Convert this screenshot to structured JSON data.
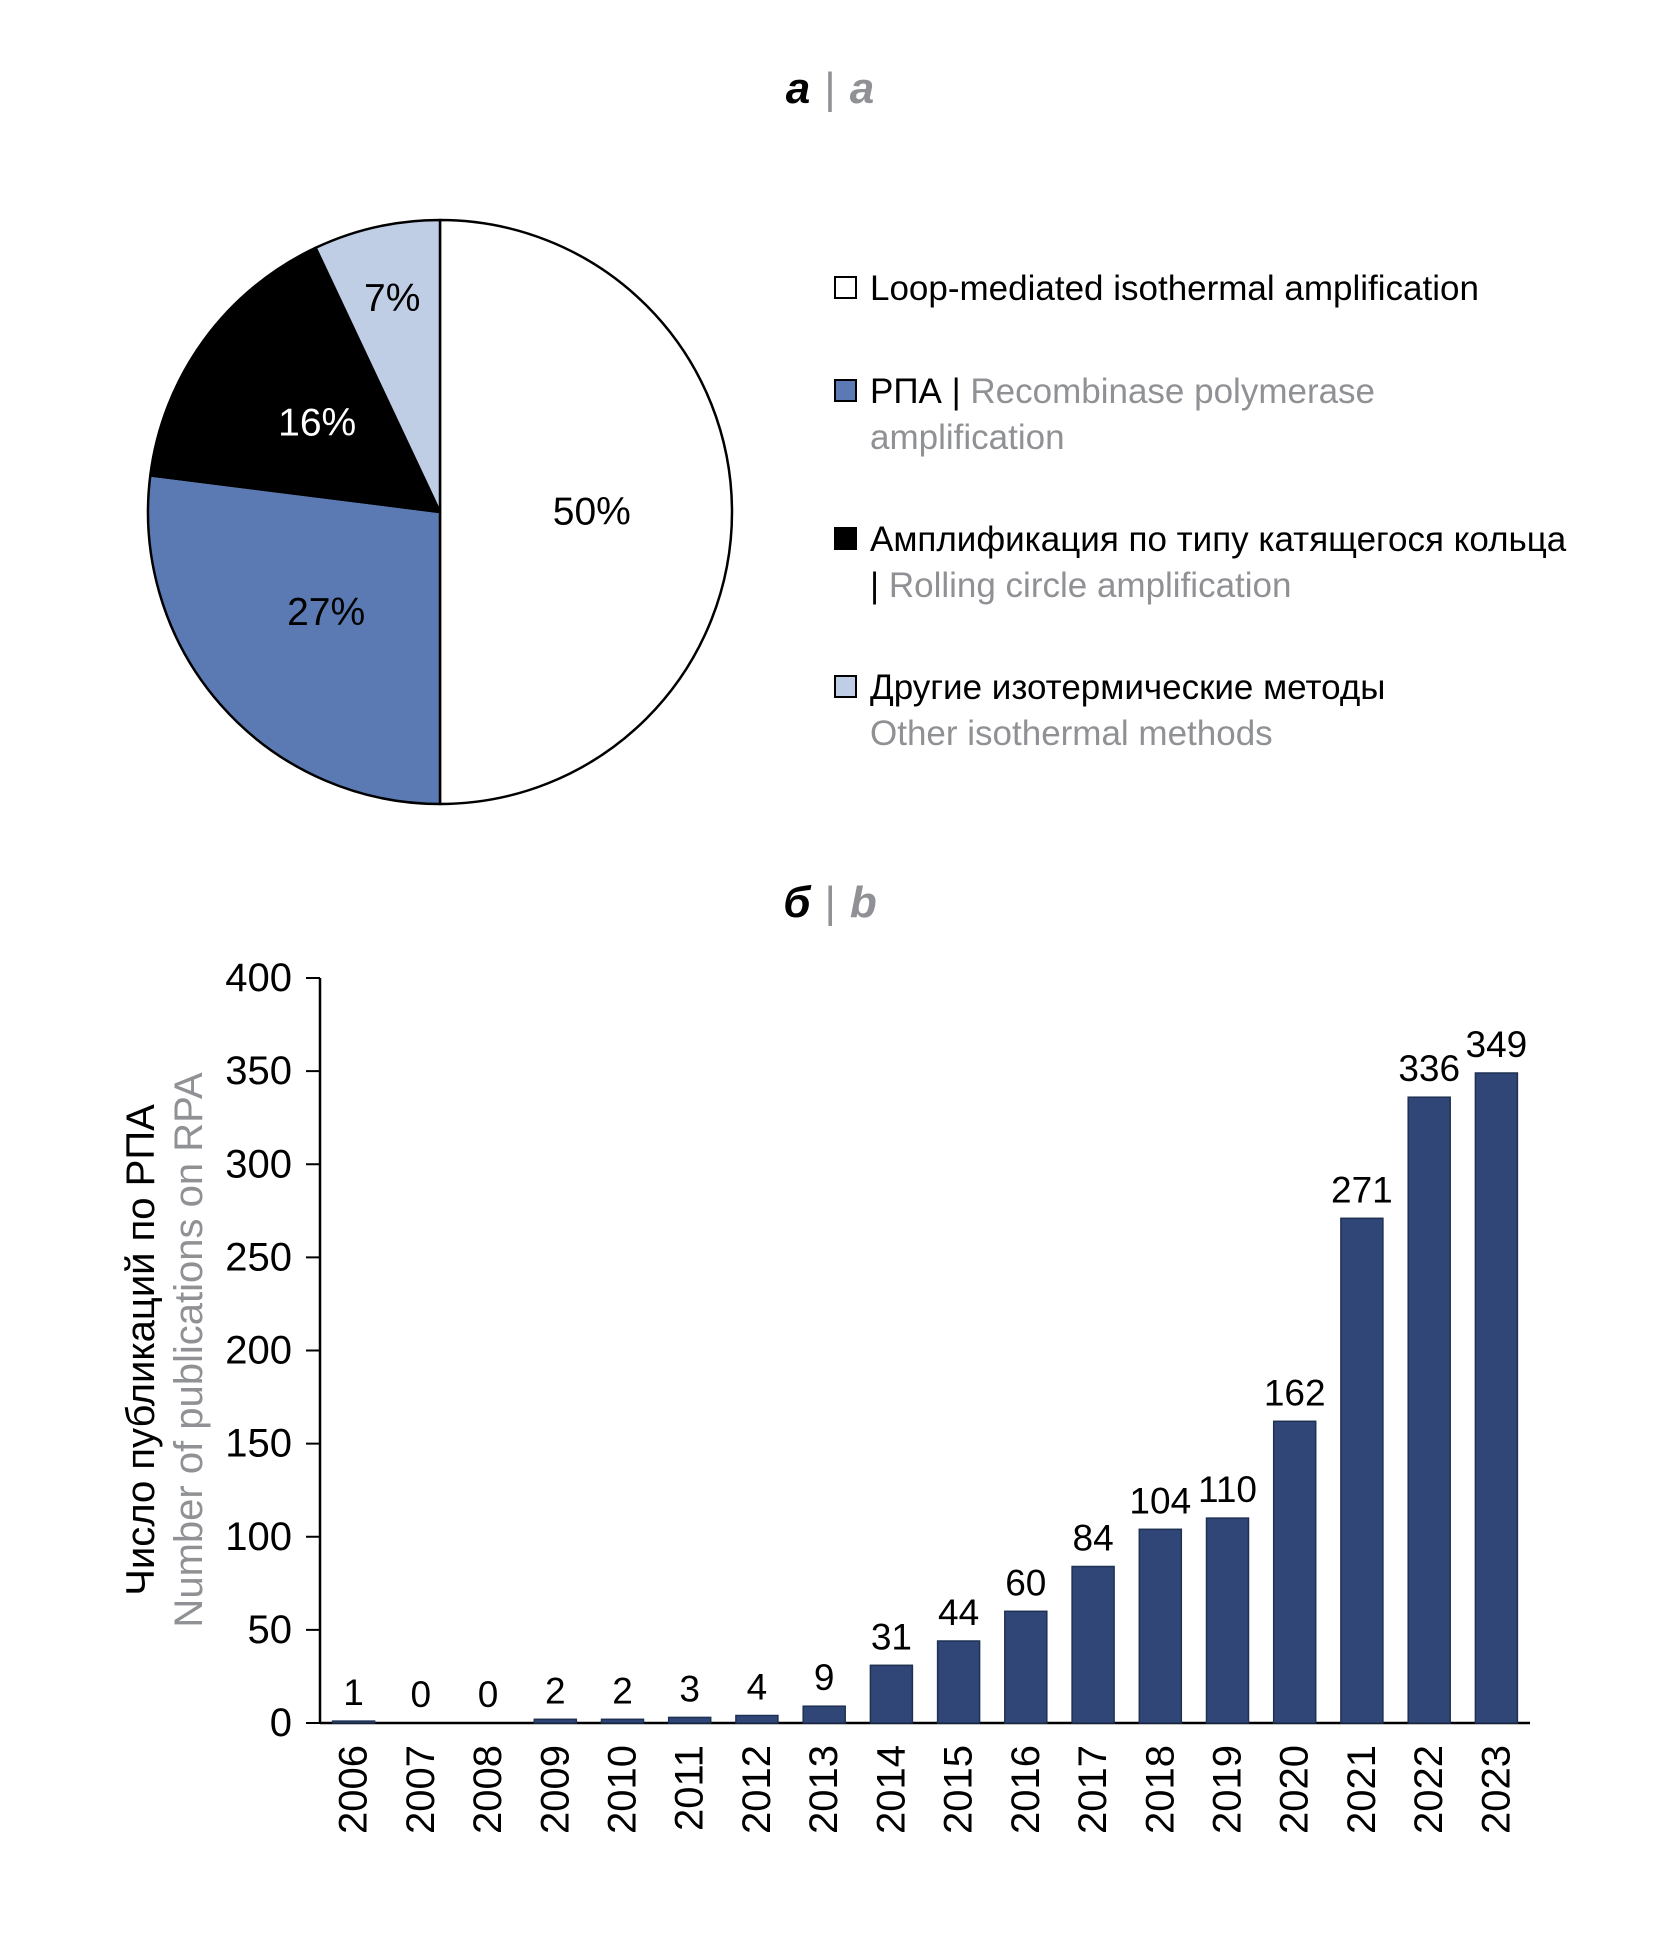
{
  "colors": {
    "gray_text": "#8F9194",
    "bar_fill": "#2F4677",
    "bar_stroke": "#1F3152",
    "pie_blue": "#5B7AB4",
    "pie_light_blue": "#BFCDE5",
    "pie_black": "#000000",
    "pie_white": "#FFFFFF"
  },
  "panel_a": {
    "label_ru": "а",
    "separator": "|",
    "label_en": "a"
  },
  "panel_b": {
    "label_ru": "б",
    "separator": "|",
    "label_en": "b"
  },
  "legend": {
    "items": [
      {
        "swatch_color": "#FFFFFF",
        "black": "Loop-mediated isothermal amplification",
        "gray": ""
      },
      {
        "swatch_color": "#5B7AB4",
        "black": "РПА | ",
        "gray": "Recombinase polymerase amplification"
      },
      {
        "swatch_color": "#000000",
        "black": "Амплификация по типу катящегося кольца | ",
        "gray": "Rolling circle amplification"
      },
      {
        "swatch_color": "#BFCDE5",
        "black": "Другие изотермические методы",
        "gray": "Other isothermal methods"
      }
    ]
  },
  "chart_data": [
    {
      "type": "pie",
      "panel": "а | a",
      "start_angle_deg": 0,
      "direction": "clockwise",
      "legend_position": "right",
      "slices": [
        {
          "label": "Loop-mediated isothermal amplification",
          "value": 50,
          "pct_label": "50%",
          "color": "#FFFFFF",
          "text_color": "#000000"
        },
        {
          "label": "РПА | Recombinase polymerase amplification",
          "value": 27,
          "pct_label": "27%",
          "color": "#5B7AB4",
          "text_color": "#000000"
        },
        {
          "label": "Амплификация по типу катящегося кольца | Rolling circle amplification",
          "value": 16,
          "pct_label": "16%",
          "color": "#000000",
          "text_color": "#FFFFFF"
        },
        {
          "label": "Другие изотермические методы | Other isothermal methods",
          "value": 7,
          "pct_label": "7%",
          "color": "#BFCDE5",
          "text_color": "#000000"
        }
      ]
    },
    {
      "type": "bar",
      "panel": "б | b",
      "categories": [
        "2006",
        "2007",
        "2008",
        "2009",
        "2010",
        "2011",
        "2012",
        "2013",
        "2014",
        "2015",
        "2016",
        "2017",
        "2018",
        "2019",
        "2020",
        "2021",
        "2022",
        "2023"
      ],
      "values": [
        1,
        0,
        0,
        2,
        2,
        3,
        4,
        9,
        31,
        44,
        60,
        84,
        104,
        110,
        162,
        271,
        336,
        349
      ],
      "ylabel_ru": "Число публикаций по РПА",
      "ylabel_en": "Number of publications on RPA",
      "ylim": [
        0,
        400
      ],
      "ytick_step": 50,
      "grid": false,
      "value_labels": true,
      "bar_color": "#2F4677"
    }
  ]
}
